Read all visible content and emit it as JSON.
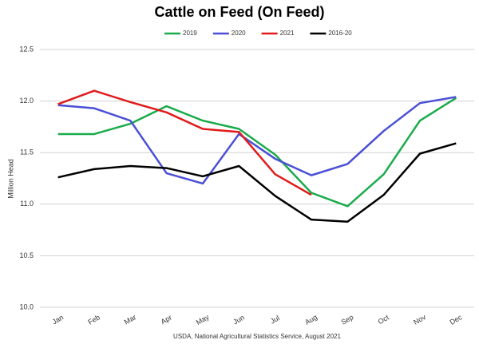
{
  "chart_data": {
    "type": "line",
    "title": "Cattle on Feed (On Feed)",
    "categories": [
      "Jan",
      "Feb",
      "Mar",
      "Apr",
      "May",
      "Jun",
      "Jul",
      "Aug",
      "Sep",
      "Oct",
      "Nov",
      "Dec"
    ],
    "series": [
      {
        "name": "2019",
        "color": "#1aab4b",
        "values": [
          11.68,
          11.68,
          11.78,
          11.95,
          11.81,
          11.73,
          11.48,
          11.11,
          10.98,
          11.29,
          11.81,
          12.03
        ]
      },
      {
        "name": "2020",
        "color": "#4a4fd6",
        "values": [
          11.96,
          11.93,
          11.81,
          11.3,
          11.2,
          11.68,
          11.44,
          11.28,
          11.39,
          11.71,
          11.98,
          12.04
        ]
      },
      {
        "name": "2021",
        "color": "#e01b1b",
        "values": [
          11.97,
          12.1,
          11.99,
          11.89,
          11.73,
          11.7,
          11.29,
          11.09,
          null,
          null,
          null,
          null
        ]
      },
      {
        "name": "2016-20",
        "color": "#000000",
        "values": [
          11.26,
          11.34,
          11.37,
          11.35,
          11.27,
          11.37,
          11.08,
          10.85,
          10.83,
          11.09,
          11.49,
          11.59
        ]
      }
    ],
    "y_label": "Million Head",
    "source": "USDA, National Agricultural Statistics Service, August 2021",
    "ylim": [
      10.0,
      12.5
    ],
    "yticks": [
      {
        "value": 10.0,
        "label": "10.0"
      },
      10.5,
      {
        "value": 11.0,
        "label": "11.0"
      },
      11.5,
      {
        "value": 12.0,
        "label": "12.0"
      },
      12.5
    ],
    "grid": true,
    "legend": "top"
  }
}
